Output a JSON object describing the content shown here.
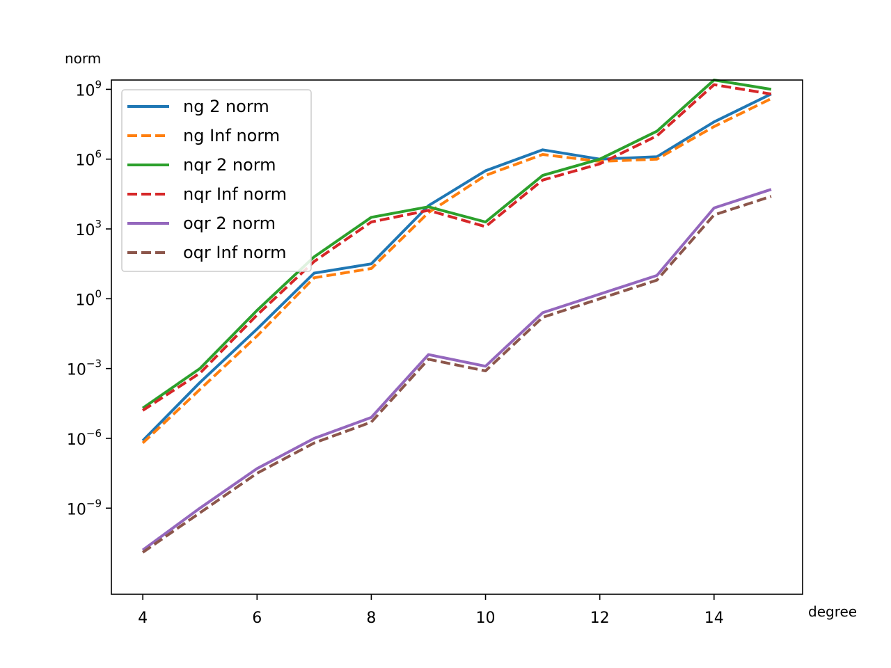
{
  "chart_data": {
    "type": "line",
    "xlabel": "degree",
    "ylabel": "norm",
    "yscale": "log",
    "xlim": [
      3.45,
      15.55
    ],
    "ylim_exp": [
      -12.7,
      9.4
    ],
    "xticks": [
      4,
      6,
      8,
      10,
      12,
      14
    ],
    "yticks_exp": [
      -9,
      -6,
      -3,
      0,
      3,
      6,
      9
    ],
    "tick_base": "10",
    "grid": false,
    "legend_position": "upper-left",
    "x": [
      4,
      5,
      6,
      7,
      8,
      9,
      10,
      11,
      12,
      13,
      14,
      15
    ],
    "series": [
      {
        "name": "ng 2 norm",
        "color": "#1f77b4",
        "style": "solid",
        "log10_values": [
          -6.1,
          -3.6,
          -1.3,
          1.1,
          1.5,
          4.0,
          5.5,
          6.4,
          6.0,
          6.1,
          7.6,
          8.8
        ]
      },
      {
        "name": "ng Inf norm",
        "color": "#ff7f0e",
        "style": "dashed",
        "log10_values": [
          -6.2,
          -3.9,
          -1.6,
          0.9,
          1.3,
          3.7,
          5.3,
          6.2,
          5.9,
          6.0,
          7.4,
          8.6
        ]
      },
      {
        "name": "nqr 2 norm",
        "color": "#2ca02c",
        "style": "solid",
        "log10_values": [
          -4.7,
          -3.0,
          -0.5,
          1.8,
          3.5,
          3.95,
          3.3,
          5.3,
          6.0,
          7.2,
          9.4,
          9.0
        ]
      },
      {
        "name": "nqr Inf norm",
        "color": "#d62728",
        "style": "dashed",
        "log10_values": [
          -4.8,
          -3.2,
          -0.7,
          1.6,
          3.3,
          3.8,
          3.1,
          5.1,
          5.8,
          7.0,
          9.2,
          8.8
        ]
      },
      {
        "name": "oqr 2 norm",
        "color": "#9467bd",
        "style": "solid",
        "log10_values": [
          -10.8,
          -9.0,
          -7.3,
          -6.0,
          -5.1,
          -2.4,
          -2.9,
          -0.6,
          0.2,
          1.0,
          3.9,
          4.7
        ]
      },
      {
        "name": "oqr Inf norm",
        "color": "#8c564b",
        "style": "dashed",
        "log10_values": [
          -10.9,
          -9.2,
          -7.5,
          -6.2,
          -5.3,
          -2.6,
          -3.1,
          -0.8,
          0.0,
          0.8,
          3.6,
          4.4
        ]
      }
    ]
  }
}
